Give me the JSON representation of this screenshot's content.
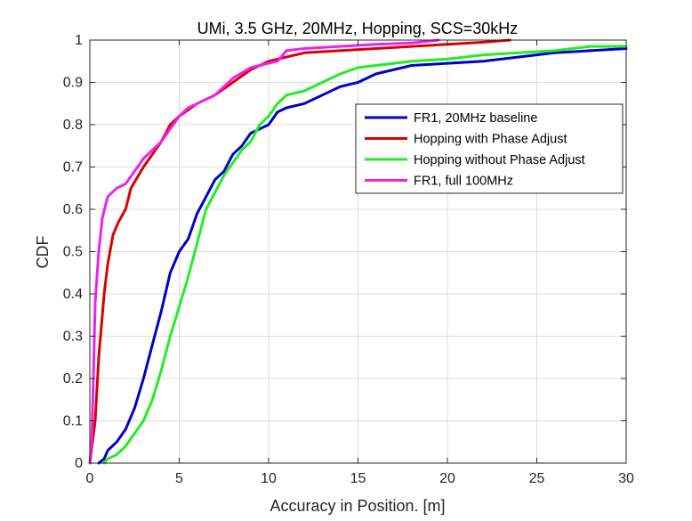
{
  "chart_data": {
    "type": "line",
    "title": "UMi, 3.5 GHz, 20MHz, Hopping, SCS=30kHz",
    "xlabel": "Accuracy in Position. [m]",
    "ylabel": "CDF",
    "xlim": [
      0,
      30
    ],
    "ylim": [
      0,
      1
    ],
    "xticks": [
      0,
      5,
      10,
      15,
      20,
      25,
      30
    ],
    "yticks": [
      0,
      0.1,
      0.2,
      0.3,
      0.4,
      0.5,
      0.6,
      0.7,
      0.8,
      0.9,
      1
    ],
    "xtick_labels": [
      "0",
      "5",
      "10",
      "15",
      "20",
      "25",
      "30"
    ],
    "ytick_labels": [
      "0",
      "0.1",
      "0.2",
      "0.3",
      "0.4",
      "0.5",
      "0.6",
      "0.7",
      "0.8",
      "0.9",
      "1"
    ],
    "grid": true,
    "legend_position": "upper-right",
    "series": [
      {
        "name": "FR1, 20MHz baseline",
        "color": "#0000cc",
        "points": [
          [
            0.5,
            0
          ],
          [
            0.8,
            0.01
          ],
          [
            1.0,
            0.03
          ],
          [
            1.5,
            0.05
          ],
          [
            2.0,
            0.08
          ],
          [
            2.5,
            0.13
          ],
          [
            3.0,
            0.2
          ],
          [
            3.5,
            0.28
          ],
          [
            4.0,
            0.36
          ],
          [
            4.5,
            0.45
          ],
          [
            5.0,
            0.5
          ],
          [
            5.5,
            0.53
          ],
          [
            6.0,
            0.59
          ],
          [
            6.5,
            0.63
          ],
          [
            7.0,
            0.67
          ],
          [
            7.5,
            0.69
          ],
          [
            8.0,
            0.73
          ],
          [
            8.5,
            0.75
          ],
          [
            9.0,
            0.78
          ],
          [
            9.5,
            0.79
          ],
          [
            10.0,
            0.8
          ],
          [
            10.5,
            0.83
          ],
          [
            11.0,
            0.84
          ],
          [
            12.0,
            0.85
          ],
          [
            13.0,
            0.87
          ],
          [
            14.0,
            0.89
          ],
          [
            15.0,
            0.9
          ],
          [
            16.0,
            0.92
          ],
          [
            18.0,
            0.94
          ],
          [
            20.0,
            0.945
          ],
          [
            22.0,
            0.95
          ],
          [
            24.0,
            0.96
          ],
          [
            25.0,
            0.965
          ],
          [
            26.0,
            0.97
          ],
          [
            28.0,
            0.975
          ],
          [
            30.0,
            0.98
          ]
        ]
      },
      {
        "name": "Hopping with Phase Adjust",
        "color": "#dd0000",
        "points": [
          [
            0,
            0
          ],
          [
            0.3,
            0.1
          ],
          [
            0.5,
            0.25
          ],
          [
            0.8,
            0.4
          ],
          [
            1.0,
            0.47
          ],
          [
            1.3,
            0.54
          ],
          [
            1.6,
            0.57
          ],
          [
            2.0,
            0.6
          ],
          [
            2.3,
            0.65
          ],
          [
            3.0,
            0.7
          ],
          [
            4.0,
            0.76
          ],
          [
            4.5,
            0.8
          ],
          [
            5.0,
            0.82
          ],
          [
            6.0,
            0.85
          ],
          [
            7.0,
            0.87
          ],
          [
            8.0,
            0.9
          ],
          [
            9.0,
            0.93
          ],
          [
            10.0,
            0.95
          ],
          [
            11.0,
            0.96
          ],
          [
            12.0,
            0.97
          ],
          [
            14.0,
            0.975
          ],
          [
            16.0,
            0.98
          ],
          [
            18.0,
            0.985
          ],
          [
            20.0,
            0.99
          ],
          [
            22.0,
            0.995
          ],
          [
            23.5,
            1.0
          ]
        ]
      },
      {
        "name": "Hopping without Phase Adjust",
        "color": "#22ee22",
        "points": [
          [
            0.8,
            0
          ],
          [
            1.0,
            0.01
          ],
          [
            1.5,
            0.02
          ],
          [
            2.0,
            0.04
          ],
          [
            2.5,
            0.07
          ],
          [
            3.0,
            0.1
          ],
          [
            3.5,
            0.15
          ],
          [
            4.0,
            0.22
          ],
          [
            4.5,
            0.3
          ],
          [
            5.0,
            0.37
          ],
          [
            5.5,
            0.44
          ],
          [
            6.0,
            0.52
          ],
          [
            6.5,
            0.6
          ],
          [
            7.0,
            0.64
          ],
          [
            7.5,
            0.68
          ],
          [
            8.0,
            0.71
          ],
          [
            8.5,
            0.74
          ],
          [
            9.0,
            0.76
          ],
          [
            9.5,
            0.8
          ],
          [
            10.0,
            0.82
          ],
          [
            10.5,
            0.85
          ],
          [
            11.0,
            0.87
          ],
          [
            12.0,
            0.88
          ],
          [
            13.0,
            0.9
          ],
          [
            14.0,
            0.92
          ],
          [
            15.0,
            0.935
          ],
          [
            16.0,
            0.94
          ],
          [
            18.0,
            0.95
          ],
          [
            20.0,
            0.955
          ],
          [
            22.0,
            0.965
          ],
          [
            24.0,
            0.97
          ],
          [
            26.0,
            0.975
          ],
          [
            28.0,
            0.985
          ],
          [
            30.0,
            0.985
          ]
        ]
      },
      {
        "name": "FR1, full 100MHz",
        "color": "#ee22ee",
        "points": [
          [
            0,
            0
          ],
          [
            0.1,
            0.05
          ],
          [
            0.2,
            0.2
          ],
          [
            0.3,
            0.38
          ],
          [
            0.5,
            0.5
          ],
          [
            0.7,
            0.58
          ],
          [
            1.0,
            0.63
          ],
          [
            1.5,
            0.65
          ],
          [
            2.0,
            0.66
          ],
          [
            2.5,
            0.69
          ],
          [
            3.0,
            0.72
          ],
          [
            3.5,
            0.74
          ],
          [
            4.0,
            0.76
          ],
          [
            4.5,
            0.79
          ],
          [
            5.0,
            0.82
          ],
          [
            5.5,
            0.84
          ],
          [
            6.0,
            0.85
          ],
          [
            7.0,
            0.87
          ],
          [
            8.0,
            0.91
          ],
          [
            9.0,
            0.935
          ],
          [
            10.0,
            0.945
          ],
          [
            10.5,
            0.95
          ],
          [
            11.0,
            0.975
          ],
          [
            12.0,
            0.98
          ],
          [
            14.0,
            0.985
          ],
          [
            16.0,
            0.99
          ],
          [
            18.0,
            0.993
          ],
          [
            19.5,
            1.0
          ]
        ]
      }
    ]
  }
}
